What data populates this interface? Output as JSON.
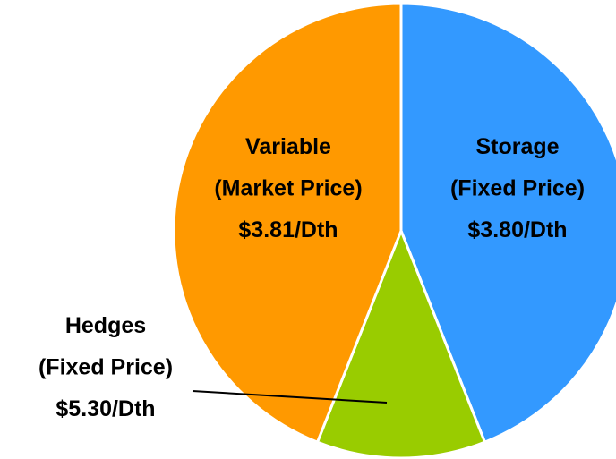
{
  "chart_data": {
    "type": "pie",
    "categories": [
      [
        "Storage",
        "(Fixed Price)",
        "$3.80/Dth"
      ],
      [
        "Hedges",
        "(Fixed Price)",
        "$5.30/Dth"
      ],
      [
        "Variable",
        "(Market Price)",
        "$3.81/Dth"
      ]
    ],
    "values": [
      44,
      12,
      44
    ],
    "colors": [
      "#3399ff",
      "#99cc00",
      "#ff9900"
    ]
  }
}
